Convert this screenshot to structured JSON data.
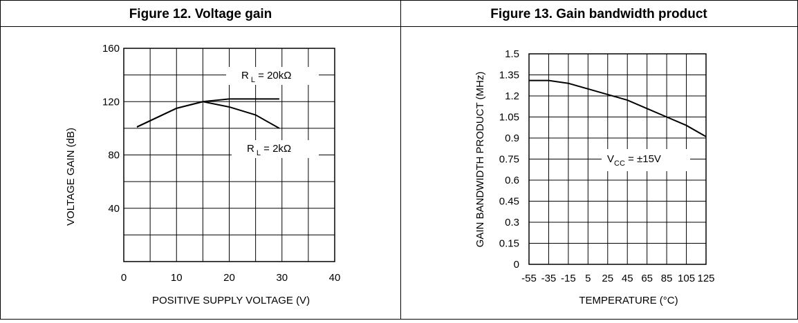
{
  "chart_data": [
    {
      "type": "line",
      "title": "Figure 12. Voltage gain",
      "xlabel": "POSITIVE SUPPLY VOLTAGE (V)",
      "ylabel": "VOLTAGE GAIN (dB)",
      "xlim": [
        0,
        40
      ],
      "ylim": [
        0,
        160
      ],
      "x_ticks": [
        "0",
        "10",
        "20",
        "30",
        "40"
      ],
      "y_ticks": [
        "160",
        "120",
        "80",
        "40"
      ],
      "grid": true,
      "series": [
        {
          "name": "R L = 20kΩ",
          "x": [
            2.5,
            10,
            15,
            20,
            25,
            29.5
          ],
          "y": [
            101,
            115,
            120,
            122,
            122,
            122
          ]
        },
        {
          "name": "R L = 2kΩ",
          "x": [
            2.5,
            10,
            15,
            20,
            25,
            29.5
          ],
          "y": [
            101,
            115,
            120,
            116,
            110,
            100
          ]
        }
      ],
      "annotations": [
        {
          "main": "R",
          "sub": "L",
          "rest": " = 20kΩ"
        },
        {
          "main": "R",
          "sub": "L",
          "rest": " = 2kΩ"
        }
      ]
    },
    {
      "type": "line",
      "title": "Figure 13. Gain bandwidth product",
      "xlabel": "TEMPERATURE (°C)",
      "ylabel": "GAIN BANDWIDTH PRODUCT (MHz)",
      "xlim": [
        -55,
        125
      ],
      "ylim": [
        0,
        1.5
      ],
      "x_ticks": [
        "-55",
        "-35",
        "-15",
        "5",
        "25",
        "45",
        "65",
        "85",
        "105",
        "125"
      ],
      "y_ticks": [
        "0",
        "0.15",
        "0.3",
        "0.45",
        "0.6",
        "0.75",
        "0.9",
        "1.05",
        "1.2",
        "1.35",
        "1.5"
      ],
      "grid": true,
      "series": [
        {
          "x": [
            -55,
            -35,
            -15,
            5,
            25,
            45,
            65,
            85,
            105,
            125
          ],
          "y": [
            1.31,
            1.31,
            1.29,
            1.25,
            1.21,
            1.17,
            1.11,
            1.05,
            0.99,
            0.91
          ]
        }
      ],
      "annotations": [
        {
          "main": "V",
          "sub": "CC",
          "rest": " = ±15V"
        }
      ]
    }
  ]
}
